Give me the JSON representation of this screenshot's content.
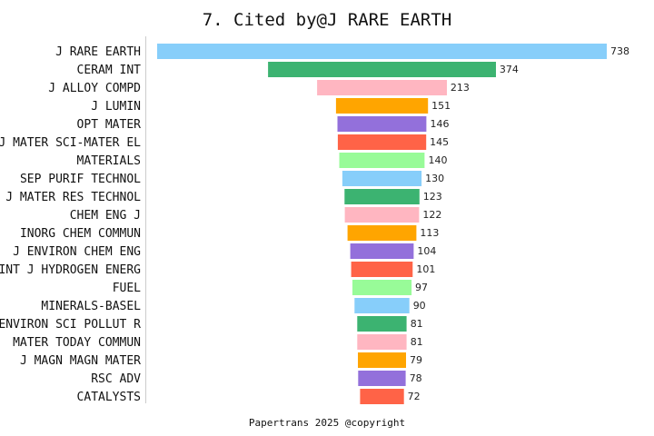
{
  "chart_data": {
    "type": "bar",
    "orientation": "horizontal",
    "style": "funnel",
    "title": "7. Cited by@J RARE EARTH",
    "categories": [
      "J RARE EARTH",
      "CERAM INT",
      "J ALLOY COMPD",
      "J LUMIN",
      "OPT MATER",
      "J MATER SCI-MATER EL",
      "MATERIALS",
      "SEP PURIF TECHNOL",
      "J MATER RES TECHNOL",
      "CHEM ENG J",
      "INORG CHEM COMMUN",
      "J ENVIRON CHEM ENG",
      "INT J HYDROGEN ENERG",
      "FUEL",
      "MINERALS-BASEL",
      "ENVIRON SCI POLLUT R",
      "MATER TODAY COMMUN",
      "J MAGN MAGN MATER",
      "RSC ADV",
      "CATALYSTS"
    ],
    "values": [
      738,
      374,
      213,
      151,
      146,
      145,
      140,
      130,
      123,
      122,
      113,
      104,
      101,
      97,
      90,
      81,
      81,
      79,
      78,
      72
    ],
    "colors": [
      "#87CEFA",
      "#3CB371",
      "#FFB6C1",
      "#FFA500",
      "#9370DB",
      "#FF6347",
      "#98FB98"
    ],
    "footer": "Papertrans 2025 @copyright"
  }
}
